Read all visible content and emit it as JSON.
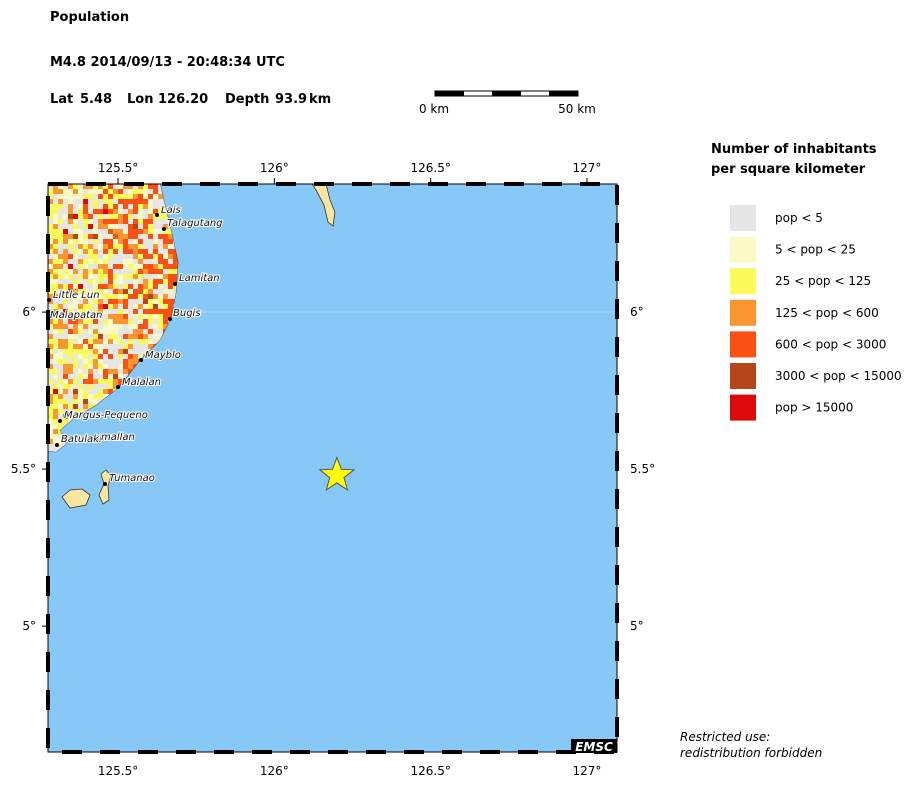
{
  "header": {
    "title": "Population",
    "event": "M4.8  2014/09/13 - 20:48:34 UTC",
    "lat_label": "Lat",
    "lat": 5.48,
    "lon_label": "Lon",
    "lon": {
      "value": 126.2,
      "label": "126.20"
    },
    "depth_label": "Depth",
    "depth": 93.9,
    "depth_unit": "km"
  },
  "scale_bar": {
    "start": "0 km",
    "end": "50 km"
  },
  "map": {
    "xlim": [
      125.276,
      127.096
    ],
    "ylim": [
      4.599,
      6.408
    ],
    "xticks": [
      {
        "value": 125.5,
        "label": "125.5°"
      },
      {
        "value": 126,
        "label": "126°"
      },
      {
        "value": 126.5,
        "label": "126.5°"
      },
      {
        "value": 127,
        "label": "127°"
      }
    ],
    "yticks": [
      {
        "value": 6,
        "label": "6°"
      },
      {
        "value": 5.5,
        "label": "5.5°"
      },
      {
        "value": 5,
        "label": "5°"
      }
    ],
    "places": [
      "Lais",
      "Talagutang",
      "Lamitan",
      "Little Lun",
      "Malapatan",
      "Bugis",
      "Mayblo",
      "Malalan",
      "Margus-Pequeno",
      "Batulaki",
      "mallan",
      "Tumanao"
    ],
    "credit": "EMSC"
  },
  "legend": {
    "title": [
      "Number of inhabitants",
      "per square kilometer"
    ],
    "items": [
      {
        "label": "pop < 5",
        "color": "#e6e6e6"
      },
      {
        "label": "5 < pop < 25",
        "color": "#fafac8"
      },
      {
        "label": "25 < pop < 125",
        "color": "#fafa5a"
      },
      {
        "label": "125 < pop < 600",
        "color": "#fa9632"
      },
      {
        "label": "600 < pop < 3000",
        "color": "#fa5014"
      },
      {
        "label": "3000 < pop < 15000",
        "color": "#b4461a"
      },
      {
        "label": "pop > 15000",
        "color": "#dc0a0a"
      }
    ]
  },
  "footer": {
    "line1": "Restricted use:",
    "line2": "redistribution forbidden"
  }
}
